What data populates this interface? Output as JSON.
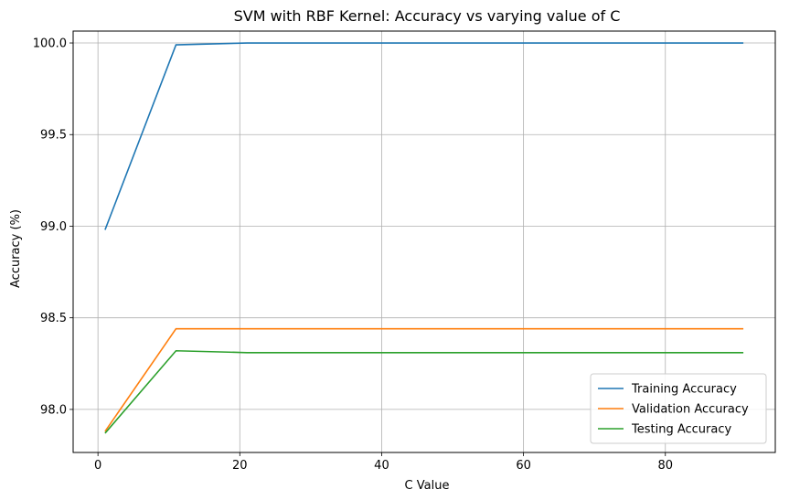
{
  "chart_data": {
    "type": "line",
    "title": "SVM with RBF Kernel: Accuracy vs varying value of C",
    "xlabel": "C Value",
    "ylabel": "Accuracy (%)",
    "xlim": [
      -3.5,
      95.5
    ],
    "ylim": [
      97.765,
      100.065
    ],
    "xticks": [
      0,
      20,
      40,
      60,
      80
    ],
    "yticks": [
      98.0,
      98.5,
      99.0,
      99.5,
      100.0
    ],
    "xtick_labels": [
      "0",
      "20",
      "40",
      "60",
      "80"
    ],
    "ytick_labels": [
      "98.0",
      "98.5",
      "99.0",
      "99.5",
      "100.0"
    ],
    "grid": true,
    "legend_position": "bottom-right",
    "x": [
      1,
      11,
      21,
      31,
      41,
      51,
      61,
      71,
      81,
      91
    ],
    "series": [
      {
        "name": "Training Accuracy",
        "color": "#1f77b4",
        "values": [
          98.98,
          99.99,
          100.0,
          100.0,
          100.0,
          100.0,
          100.0,
          100.0,
          100.0,
          100.0
        ]
      },
      {
        "name": "Validation Accuracy",
        "color": "#ff7f0e",
        "values": [
          97.88,
          98.44,
          98.44,
          98.44,
          98.44,
          98.44,
          98.44,
          98.44,
          98.44,
          98.44
        ]
      },
      {
        "name": "Testing Accuracy",
        "color": "#2ca02c",
        "values": [
          97.87,
          98.32,
          98.31,
          98.31,
          98.31,
          98.31,
          98.31,
          98.31,
          98.31,
          98.31
        ]
      }
    ]
  }
}
